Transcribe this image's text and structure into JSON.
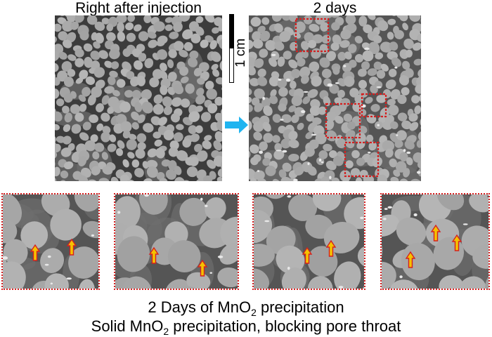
{
  "panels": {
    "before_title": "Right after injection",
    "after_title": "2 days"
  },
  "scale_bar": {
    "label": "1 cm"
  },
  "caption": {
    "line1_prefix": "2 Days of MnO",
    "line1_sub": "2",
    "line1_suffix": " precipitation",
    "line2_prefix": "Solid MnO",
    "line2_sub": "2",
    "line2_suffix": " precipitation, blocking pore throat"
  },
  "colors": {
    "highlight_box": "#d42020",
    "arrow_fill": "#f5c200",
    "arrow_stroke": "#d42020",
    "transition_arrow": "#1fb4f0",
    "grain": "#a9a9a9",
    "pore": "#3c3c3c"
  },
  "icons": {
    "transition": "right-arrow-icon",
    "marker": "up-arrow-icon"
  }
}
